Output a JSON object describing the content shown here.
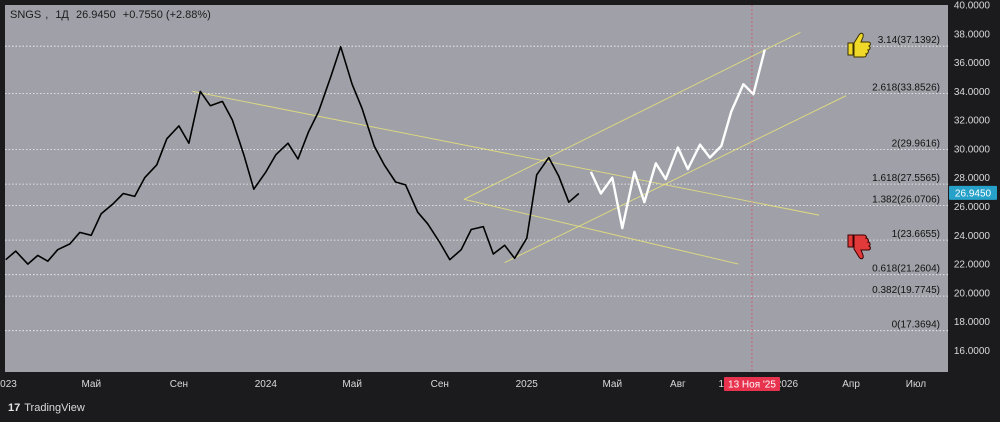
{
  "header": {
    "symbol": "SNGS",
    "interval": "1Д",
    "last": "26.9450",
    "change": "+0.7550 (+2.88%)"
  },
  "branding": {
    "logo_text": "17",
    "name": "TradingView"
  },
  "colors": {
    "plot_bg": "#a0a1a8",
    "price_line": "#000000",
    "projection_line": "#ffffff",
    "trend_lines": "#e8e27a",
    "last_price_badge": "#26a1c9",
    "date_badge": "#e8334f",
    "axis_text": "#d9d9d9",
    "grid": "#ffffff"
  },
  "chart_data": {
    "type": "line",
    "title": "",
    "xlabel": "",
    "ylabel": "",
    "ylim": [
      14.5,
      40.0
    ],
    "y_ticks": [
      "40.0000",
      "38.0000",
      "36.0000",
      "34.0000",
      "32.0000",
      "30.0000",
      "28.0000",
      "26.0000",
      "24.0000",
      "22.0000",
      "20.0000",
      "18.0000",
      "16.0000"
    ],
    "x_ticks": [
      "2023",
      "Май",
      "Сен",
      "2024",
      "Май",
      "Сен",
      "2025",
      "Май",
      "Авг",
      "1",
      "2026",
      "Апр",
      "Июл"
    ],
    "last_price_label": "26.9450",
    "cursor_date_label": "13 Ноя '25",
    "fib_levels": [
      {
        "label": "3.14(37.1392)",
        "value": 37.1392
      },
      {
        "label": "2.618(33.8526)",
        "value": 33.8526
      },
      {
        "label": "2(29.9616)",
        "value": 29.9616
      },
      {
        "label": "1.618(27.5565)",
        "value": 27.5565
      },
      {
        "label": "1.382(26.0706)",
        "value": 26.0706
      },
      {
        "label": "1(23.6655)",
        "value": 23.6655
      },
      {
        "label": "0.618(21.2604)",
        "value": 21.2604
      },
      {
        "label": "0.382(19.7745)",
        "value": 19.7745
      },
      {
        "label": "0(17.3694)",
        "value": 17.3694
      }
    ],
    "series": [
      {
        "values": [
          [
            "2023-01-01",
            22.3
          ],
          [
            "2023-01-15",
            22.9
          ],
          [
            "2023-02-01",
            22.0
          ],
          [
            "2023-02-15",
            22.6
          ],
          [
            "2023-03-01",
            22.2
          ],
          [
            "2023-03-15",
            23.0
          ],
          [
            "2023-04-01",
            23.4
          ],
          [
            "2023-04-15",
            24.2
          ],
          [
            "2023-05-01",
            24.0
          ],
          [
            "2023-05-15",
            25.5
          ],
          [
            "2023-06-01",
            26.2
          ],
          [
            "2023-06-15",
            26.9
          ],
          [
            "2023-07-01",
            26.7
          ],
          [
            "2023-07-15",
            28.0
          ],
          [
            "2023-08-01",
            28.9
          ],
          [
            "2023-08-15",
            30.7
          ],
          [
            "2023-09-01",
            31.6
          ],
          [
            "2023-09-15",
            30.4
          ],
          [
            "2023-10-01",
            34.0
          ],
          [
            "2023-10-15",
            33.0
          ],
          [
            "2023-11-01",
            33.3
          ],
          [
            "2023-11-15",
            32.0
          ],
          [
            "2023-12-01",
            29.6
          ],
          [
            "2023-12-15",
            27.2
          ],
          [
            "2024-01-01",
            28.4
          ],
          [
            "2024-01-15",
            29.6
          ],
          [
            "2024-02-01",
            30.4
          ],
          [
            "2024-02-15",
            29.3
          ],
          [
            "2024-03-01",
            31.2
          ],
          [
            "2024-03-15",
            32.6
          ],
          [
            "2024-04-01",
            35.0
          ],
          [
            "2024-04-15",
            37.1
          ],
          [
            "2024-05-01",
            34.5
          ],
          [
            "2024-05-15",
            32.8
          ],
          [
            "2024-06-01",
            30.2
          ],
          [
            "2024-06-15",
            28.9
          ],
          [
            "2024-07-01",
            27.7
          ],
          [
            "2024-07-15",
            27.5
          ],
          [
            "2024-08-01",
            25.6
          ],
          [
            "2024-08-15",
            24.8
          ],
          [
            "2024-09-01",
            23.5
          ],
          [
            "2024-09-15",
            22.3
          ],
          [
            "2024-10-01",
            23.0
          ],
          [
            "2024-10-15",
            24.4
          ],
          [
            "2024-11-01",
            24.6
          ],
          [
            "2024-11-15",
            22.7
          ],
          [
            "2024-12-01",
            23.3
          ],
          [
            "2024-12-15",
            22.4
          ],
          [
            "2025-01-01",
            23.8
          ],
          [
            "2025-01-15",
            28.2
          ],
          [
            "2025-02-01",
            29.4
          ],
          [
            "2025-02-15",
            28.1
          ],
          [
            "2025-03-01",
            26.3
          ],
          [
            "2025-03-15",
            26.9
          ]
        ]
      },
      {
        "values": [
          [
            "2025-04-01",
            28.4
          ],
          [
            "2025-04-15",
            26.9
          ],
          [
            "2025-05-01",
            28.0
          ],
          [
            "2025-05-15",
            24.5
          ],
          [
            "2025-06-01",
            28.4
          ],
          [
            "2025-06-15",
            26.3
          ],
          [
            "2025-07-01",
            29.0
          ],
          [
            "2025-07-15",
            27.9
          ],
          [
            "2025-08-01",
            30.1
          ],
          [
            "2025-08-15",
            28.6
          ],
          [
            "2025-09-01",
            30.3
          ],
          [
            "2025-09-15",
            29.4
          ],
          [
            "2025-10-01",
            30.2
          ],
          [
            "2025-10-15",
            32.6
          ],
          [
            "2025-11-01",
            34.5
          ],
          [
            "2025-11-15",
            33.8
          ],
          [
            "2025-12-01",
            36.9
          ]
        ]
      }
    ]
  }
}
